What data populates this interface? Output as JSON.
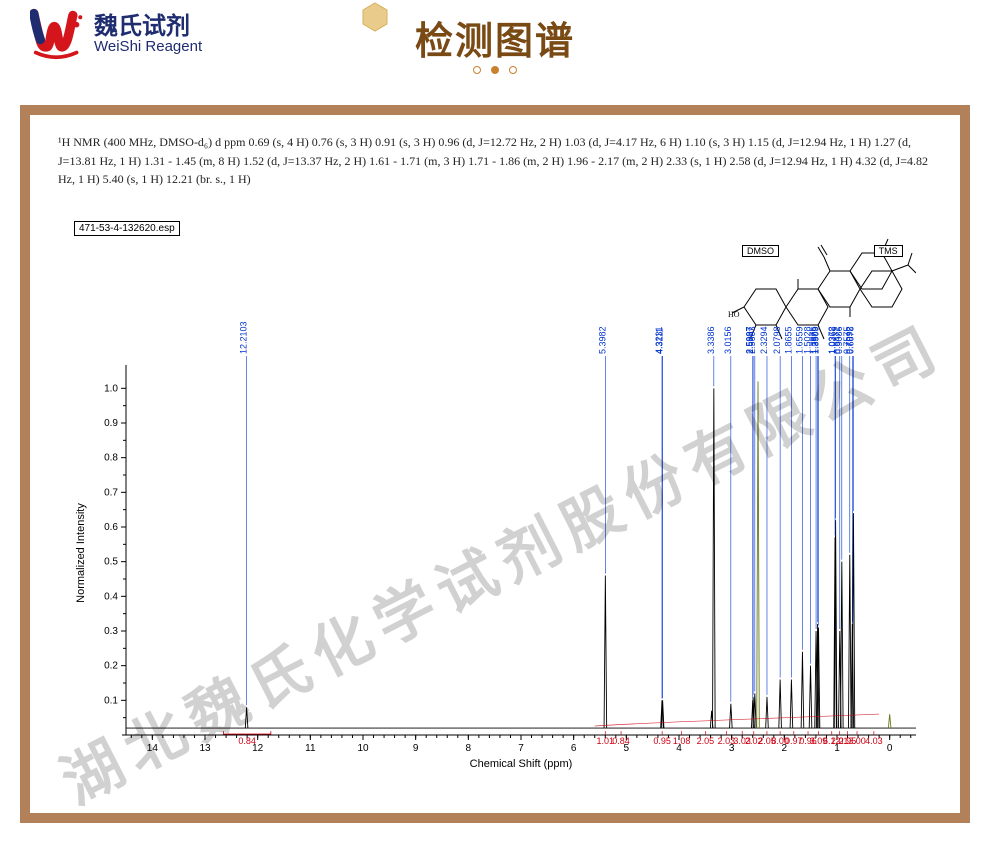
{
  "brand": {
    "cn": "魏氏试剂",
    "en": "WeiShi Reagent",
    "red": "#d4151b",
    "navy": "#1f2d70"
  },
  "title": "检测图谱",
  "title_color": "#7a4a15",
  "frame_border": "#b2815a",
  "watermark": "湖北魏氏化学试剂股份有限公司",
  "nmr_text": "¹H NMR (400 MHz, DMSO-d₆) d ppm 0.69 (s, 4 H) 0.76 (s, 3 H) 0.91 (s, 3 H) 0.96 (d, J=12.72 Hz, 2 H) 1.03 (d, J=4.17 Hz, 6 H) 1.10 (s, 3 H) 1.15 (d, J=12.94 Hz, 1 H) 1.27 (d, J=13.81 Hz, 1 H) 1.31 - 1.45 (m, 8 H) 1.52 (d, J=13.37 Hz, 2 H) 1.61 - 1.71 (m, 3 H) 1.71 - 1.86 (m, 2 H) 1.96 - 2.17 (m, 2 H) 2.33 (s, 1 H) 2.58 (d, J=12.94 Hz, 1 H) 4.32 (d, J=4.82 Hz, 1 H) 5.40 (s, 1 H) 12.21 (br. s., 1 H)",
  "file_label": "471-53-4-132620.esp",
  "solvent_labels": [
    {
      "text": "DMSO",
      "ppm": 2.5
    },
    {
      "text": "TMS",
      "ppm": 0.0
    }
  ],
  "chart": {
    "type": "nmr_spectrum",
    "x_label": "Chemical Shift (ppm)",
    "y_label": "Normalized Intensity",
    "x_min": -0.5,
    "x_max": 14.5,
    "x_ticks": [
      0,
      1,
      2,
      3,
      4,
      5,
      6,
      7,
      8,
      9,
      10,
      11,
      12,
      13,
      14
    ],
    "y_min": 0.0,
    "y_max": 1.05,
    "y_ticks": [
      0.1,
      0.2,
      0.3,
      0.4,
      0.5,
      0.6,
      0.7,
      0.8,
      0.9,
      1.0
    ],
    "axis_color": "#000000",
    "trace_color": "#000000",
    "peak_leader_color": "#0034cf",
    "integral_color": "#cf0011",
    "solvent_bar_color": "#6a7a1c",
    "baseline_y": 0.02,
    "peaks": [
      {
        "ppm": 12.2103,
        "h": 0.06,
        "label": "12.2103"
      },
      {
        "ppm": 5.3982,
        "h": 0.44,
        "label": "5.3982"
      },
      {
        "ppm": 4.3231,
        "h": 0.08,
        "label": "4.3231"
      },
      {
        "ppm": 4.3111,
        "h": 0.08,
        "label": "4.3111"
      },
      {
        "ppm": 3.38,
        "h": 0.05,
        "label": null
      },
      {
        "ppm": 3.3386,
        "h": 0.98,
        "label": "3.3386"
      },
      {
        "ppm": 3.0156,
        "h": 0.07,
        "label": "3.0156"
      },
      {
        "ppm": 2.5997,
        "h": 0.08,
        "label": "2.5997"
      },
      {
        "ppm": 2.5927,
        "h": 0.09,
        "label": "2.5927"
      },
      {
        "ppm": 2.5603,
        "h": 0.1,
        "label": "2.5603"
      },
      {
        "ppm": 2.5,
        "h": 1.0,
        "label": null,
        "color": "#6a7a1c"
      },
      {
        "ppm": 2.3294,
        "h": 0.09,
        "label": "2.3294"
      },
      {
        "ppm": 2.0798,
        "h": 0.14,
        "label": "2.0798"
      },
      {
        "ppm": 1.8655,
        "h": 0.14,
        "label": "1.8655"
      },
      {
        "ppm": 1.6559,
        "h": 0.22,
        "label": "1.6559"
      },
      {
        "ppm": 1.5028,
        "h": 0.18,
        "label": "1.5028"
      },
      {
        "ppm": 1.3975,
        "h": 0.28,
        "label": "1.3975"
      },
      {
        "ppm": 1.3685,
        "h": 0.3,
        "label": "1.3685"
      },
      {
        "ppm": 1.3509,
        "h": 0.29,
        "label": "1.3509"
      },
      {
        "ppm": 1.0372,
        "h": 0.55,
        "label": "1.0372"
      },
      {
        "ppm": 1.0268,
        "h": 0.6,
        "label": "1.0268"
      },
      {
        "ppm": 0.9472,
        "h": 0.28,
        "label": "0.9472"
      },
      {
        "ppm": 0.9086,
        "h": 0.48,
        "label": "0.9086"
      },
      {
        "ppm": 0.7575,
        "h": 0.5,
        "label": "0.7575"
      },
      {
        "ppm": 0.7092,
        "h": 0.3,
        "label": "0.7092"
      },
      {
        "ppm": 0.6878,
        "h": 0.62,
        "label": "0.6878"
      },
      {
        "ppm": 0.0,
        "h": 0.04,
        "label": null,
        "color": "#6a7a1c"
      }
    ],
    "integrals_left": [
      {
        "ppm": 12.2,
        "w": 0.9,
        "label": "0.84"
      }
    ],
    "integrals_right": [
      {
        "ppm": 5.4,
        "label": "1.01"
      },
      {
        "ppm": 5.1,
        "label": "0.84"
      },
      {
        "ppm": 4.32,
        "label": "0.95"
      },
      {
        "ppm": 3.95,
        "label": "1.08"
      },
      {
        "ppm": 3.5,
        "label": "2.05"
      },
      {
        "ppm": 3.1,
        "label": "2.03"
      },
      {
        "ppm": 2.8,
        "label": "3.03"
      },
      {
        "ppm": 2.58,
        "label": "2.02"
      },
      {
        "ppm": 2.33,
        "label": "2.05"
      },
      {
        "ppm": 2.08,
        "label": "8.00"
      },
      {
        "ppm": 1.82,
        "label": "0.97"
      },
      {
        "ppm": 1.55,
        "label": "0.96"
      },
      {
        "ppm": 1.35,
        "label": "3.09"
      },
      {
        "ppm": 1.1,
        "label": "6.12"
      },
      {
        "ppm": 0.95,
        "label": "2.01"
      },
      {
        "ppm": 0.8,
        "label": "2.95"
      },
      {
        "ppm": 0.62,
        "label": "3.00"
      },
      {
        "ppm": 0.3,
        "label": "4.03"
      }
    ]
  }
}
